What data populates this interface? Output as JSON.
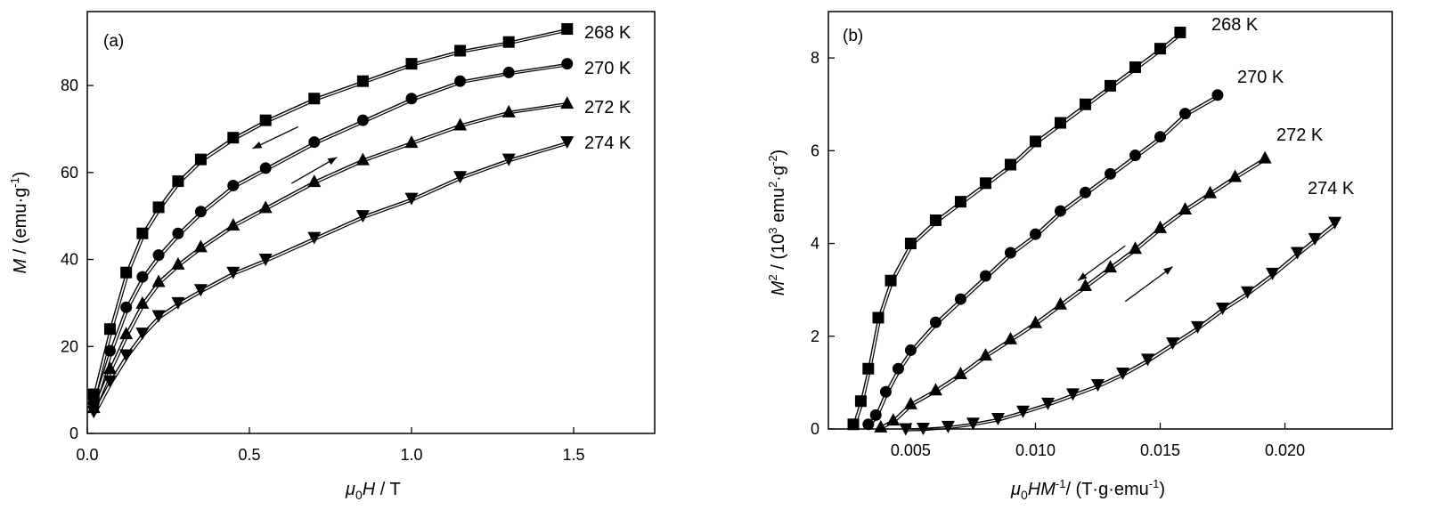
{
  "chart_data": [
    {
      "type": "line",
      "panel_label": "(a)",
      "xlabel": {
        "italic": "μ",
        "sub": "0",
        "italic2": "H",
        "rest": " / T"
      },
      "ylabel": {
        "italic": "M",
        "rest": " / (emu·g",
        "sup": "-1",
        "close": ")"
      },
      "xlim": [
        0,
        1.75
      ],
      "ylim": [
        0,
        97
      ],
      "xticks": [
        0.0,
        0.5,
        1.0,
        1.5
      ],
      "xtick_labels": [
        "0.0",
        "0.5",
        "1.0",
        "1.5"
      ],
      "yticks": [
        0,
        20,
        40,
        60,
        80
      ],
      "ytick_labels": [
        "0",
        "20",
        "40",
        "60",
        "80"
      ],
      "grid": false,
      "legend": "none",
      "series": [
        {
          "name": "268 K",
          "marker": "square",
          "x": [
            0.02,
            0.07,
            0.12,
            0.17,
            0.22,
            0.28,
            0.35,
            0.45,
            0.55,
            0.7,
            0.85,
            1.0,
            1.15,
            1.3,
            1.48
          ],
          "y": [
            9,
            24,
            37,
            46,
            52,
            58,
            63,
            68,
            72,
            77,
            81,
            85,
            88,
            90,
            93
          ]
        },
        {
          "name": "270 K",
          "marker": "circle",
          "x": [
            0.02,
            0.07,
            0.12,
            0.17,
            0.22,
            0.28,
            0.35,
            0.45,
            0.55,
            0.7,
            0.85,
            1.0,
            1.15,
            1.3,
            1.48
          ],
          "y": [
            7,
            19,
            29,
            36,
            41,
            46,
            51,
            57,
            61,
            67,
            72,
            77,
            81,
            83,
            85
          ]
        },
        {
          "name": "272 K",
          "marker": "triangle-up",
          "x": [
            0.02,
            0.07,
            0.12,
            0.17,
            0.22,
            0.28,
            0.35,
            0.45,
            0.55,
            0.7,
            0.85,
            1.0,
            1.15,
            1.3,
            1.48
          ],
          "y": [
            6,
            15,
            23,
            30,
            35,
            39,
            43,
            48,
            52,
            58,
            63,
            67,
            71,
            74,
            76
          ]
        },
        {
          "name": "274 K",
          "marker": "triangle-down",
          "x": [
            0.02,
            0.07,
            0.12,
            0.17,
            0.22,
            0.28,
            0.35,
            0.45,
            0.55,
            0.7,
            0.85,
            1.0,
            1.15,
            1.3,
            1.48
          ],
          "y": [
            5,
            12,
            18,
            23,
            27,
            30,
            33,
            37,
            40,
            45,
            50,
            54,
            59,
            63,
            67
          ]
        }
      ],
      "arrows": [
        {
          "from": [
            0.65,
            70.5
          ],
          "to": [
            0.51,
            65.5
          ]
        },
        {
          "from": [
            0.63,
            57.5
          ],
          "to": [
            0.77,
            63.5
          ]
        }
      ]
    },
    {
      "type": "line",
      "panel_label": "(b)",
      "xlabel": {
        "italic": "μ",
        "sub": "0",
        "italic2": "HM",
        "sup": "-1",
        "rest": "/ (T·g·emu",
        "sup2": "-1",
        "close": ")"
      },
      "ylabel": {
        "italic": "M",
        "sup": "2",
        "rest": " / (10",
        "sup2": "3",
        "mid": " emu",
        "sup3": "2",
        "mid2": "·g",
        "sup4": "-2",
        "close": ")"
      },
      "xlim": [
        0.0017,
        0.0243
      ],
      "ylim": [
        0,
        9
      ],
      "xticks": [
        0.005,
        0.01,
        0.015,
        0.02
      ],
      "xtick_labels": [
        "0.005",
        "0.010",
        "0.015",
        "0.020"
      ],
      "yticks": [
        0,
        2,
        4,
        6,
        8
      ],
      "ytick_labels": [
        "0",
        "2",
        "4",
        "6",
        "8"
      ],
      "grid": false,
      "legend": "none",
      "series": [
        {
          "name": "268 K",
          "marker": "square",
          "x": [
            0.0027,
            0.003,
            0.0033,
            0.0037,
            0.0042,
            0.005,
            0.006,
            0.007,
            0.008,
            0.009,
            0.01,
            0.011,
            0.012,
            0.013,
            0.014,
            0.015,
            0.0158
          ],
          "y": [
            0.1,
            0.6,
            1.3,
            2.4,
            3.2,
            4.0,
            4.5,
            4.9,
            5.3,
            5.7,
            6.2,
            6.6,
            7.0,
            7.4,
            7.8,
            8.2,
            8.55
          ]
        },
        {
          "name": "270 K",
          "marker": "circle",
          "x": [
            0.0033,
            0.0036,
            0.004,
            0.0045,
            0.005,
            0.006,
            0.007,
            0.008,
            0.009,
            0.01,
            0.011,
            0.012,
            0.013,
            0.014,
            0.015,
            0.016,
            0.0173
          ],
          "y": [
            0.1,
            0.3,
            0.8,
            1.3,
            1.7,
            2.3,
            2.8,
            3.3,
            3.8,
            4.2,
            4.7,
            5.1,
            5.5,
            5.9,
            6.3,
            6.8,
            7.2
          ]
        },
        {
          "name": "272 K",
          "marker": "triangle-up",
          "x": [
            0.0038,
            0.0043,
            0.005,
            0.006,
            0.007,
            0.008,
            0.009,
            0.01,
            0.011,
            0.012,
            0.013,
            0.014,
            0.015,
            0.016,
            0.017,
            0.018,
            0.0192
          ],
          "y": [
            0.05,
            0.2,
            0.55,
            0.85,
            1.2,
            1.6,
            1.95,
            2.3,
            2.7,
            3.1,
            3.5,
            3.9,
            4.35,
            4.75,
            5.1,
            5.45,
            5.85
          ]
        },
        {
          "name": "274 K",
          "marker": "triangle-down",
          "x": [
            0.0048,
            0.0055,
            0.0065,
            0.0075,
            0.0085,
            0.0095,
            0.0105,
            0.0115,
            0.0125,
            0.0135,
            0.0145,
            0.0155,
            0.0165,
            0.0175,
            0.0185,
            0.0195,
            0.0205,
            0.0212,
            0.022
          ],
          "y": [
            0.0,
            0.01,
            0.05,
            0.12,
            0.22,
            0.38,
            0.55,
            0.75,
            0.95,
            1.2,
            1.5,
            1.85,
            2.2,
            2.6,
            2.95,
            3.35,
            3.8,
            4.1,
            4.45
          ]
        }
      ],
      "arrows": [
        {
          "from": [
            0.0136,
            3.95
          ],
          "to": [
            0.0117,
            3.2
          ]
        },
        {
          "from": [
            0.0136,
            2.75
          ],
          "to": [
            0.0155,
            3.5
          ]
        }
      ]
    }
  ]
}
